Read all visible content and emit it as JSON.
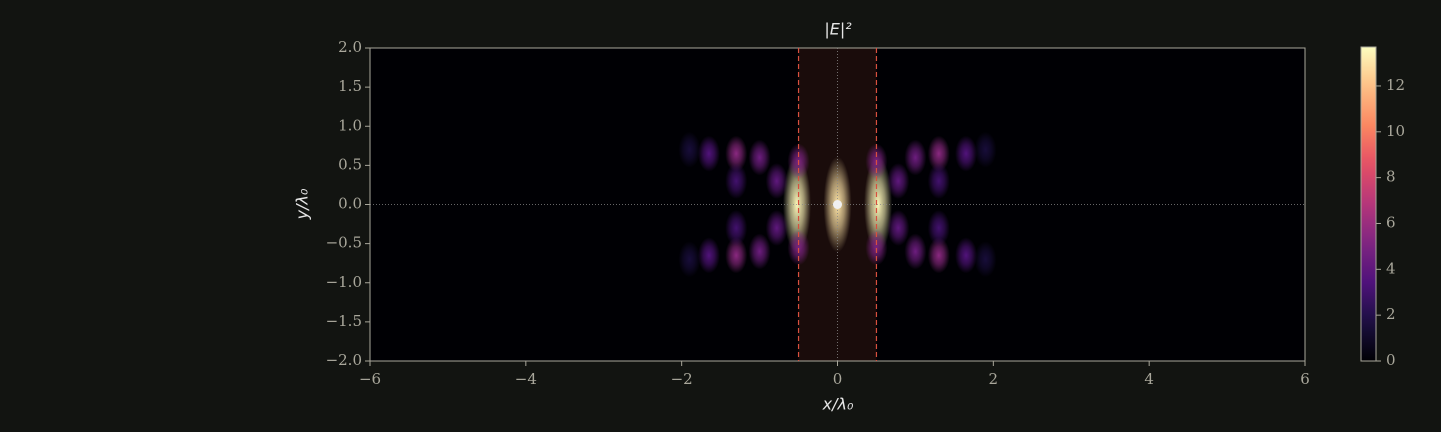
{
  "chart_data": {
    "type": "heatmap",
    "title": "|E|²",
    "xlabel": "x/λ₀",
    "ylabel": "y/λ₀",
    "xlim": [
      -6,
      6
    ],
    "ylim": [
      -2,
      2
    ],
    "xticks": [
      {
        "value": -6,
        "label": "−6"
      },
      {
        "value": -4,
        "label": "−4"
      },
      {
        "value": -2,
        "label": "−2"
      },
      0,
      2,
      4,
      6
    ],
    "yticks": [
      {
        "value": -2,
        "label": "−2.0"
      },
      {
        "value": -1.5,
        "label": "−1.5"
      },
      {
        "value": -1,
        "label": "−1.0"
      },
      {
        "value": -0.5,
        "label": "−0.5"
      },
      {
        "value": 0,
        "label": "0.0"
      },
      {
        "value": 0.5,
        "label": "0.5"
      },
      {
        "value": 1,
        "label": "1.0"
      },
      {
        "value": 1.5,
        "label": "1.5"
      },
      {
        "value": 2,
        "label": "2.0"
      }
    ],
    "colorbar_lim": [
      0,
      13.7
    ],
    "colorbar_ticks": [
      0,
      2,
      4,
      6,
      8,
      10,
      12
    ],
    "colormap": "magma",
    "slab_edges": [
      -0.5,
      0.5
    ],
    "source": [
      0,
      0
    ],
    "spots": [
      [
        0,
        0,
        13
      ],
      [
        0.52,
        0,
        13.5
      ],
      [
        -0.52,
        0,
        13.5
      ],
      [
        0.5,
        0.55,
        5
      ],
      [
        -0.5,
        0.55,
        5
      ],
      [
        0.5,
        -0.55,
        5
      ],
      [
        -0.5,
        -0.55,
        5
      ],
      [
        0.78,
        0.3,
        4
      ],
      [
        -0.78,
        0.3,
        4
      ],
      [
        0.78,
        -0.3,
        4
      ],
      [
        -0.78,
        -0.3,
        4
      ],
      [
        1.0,
        0.6,
        4.5
      ],
      [
        -1.0,
        0.6,
        4.5
      ],
      [
        1.0,
        -0.6,
        4.5
      ],
      [
        -1.0,
        -0.6,
        4.5
      ],
      [
        1.3,
        0.65,
        5.5
      ],
      [
        -1.3,
        0.65,
        5.5
      ],
      [
        1.3,
        -0.65,
        5.5
      ],
      [
        -1.3,
        -0.65,
        5.5
      ],
      [
        1.3,
        0.3,
        3
      ],
      [
        -1.3,
        0.3,
        3
      ],
      [
        1.3,
        -0.3,
        3
      ],
      [
        -1.3,
        -0.3,
        3
      ],
      [
        1.65,
        0.65,
        3.5
      ],
      [
        -1.65,
        0.65,
        3.5
      ],
      [
        1.65,
        -0.65,
        3.5
      ],
      [
        -1.65,
        -0.65,
        3.5
      ],
      [
        1.9,
        0.7,
        1.5
      ],
      [
        -1.9,
        0.7,
        1.5
      ],
      [
        1.9,
        -0.7,
        1.5
      ],
      [
        -1.9,
        -0.7,
        1.5
      ]
    ]
  }
}
